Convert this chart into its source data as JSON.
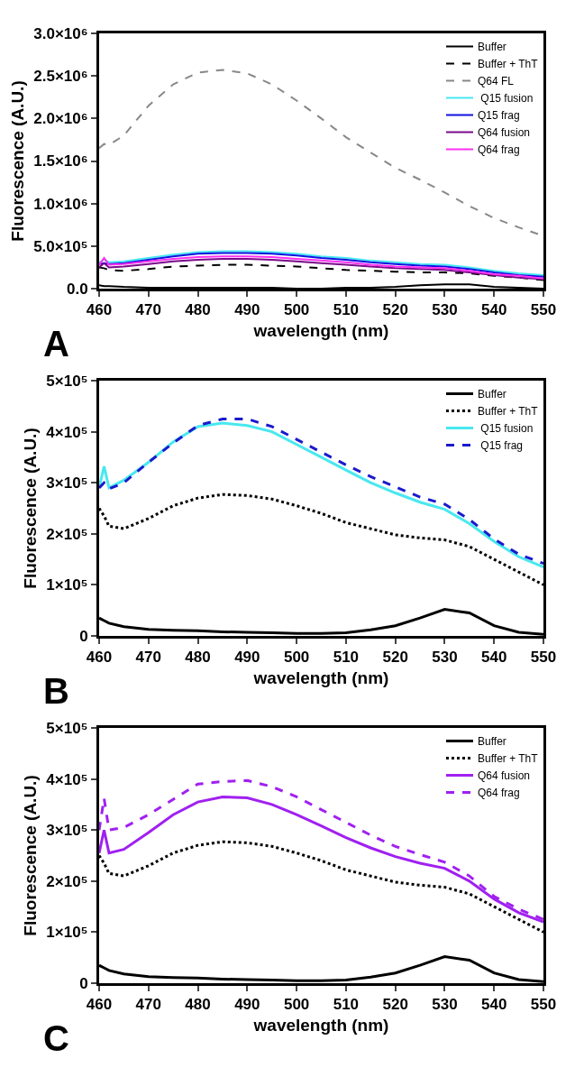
{
  "chart_data": [
    {
      "type": "line",
      "annotations": [
        "A"
      ],
      "xlabel": "wavelength (nm)",
      "ylabel": "Fluorescence (A.U.)",
      "xlim": [
        460,
        550
      ],
      "xticks": [
        460,
        470,
        480,
        490,
        500,
        510,
        520,
        530,
        540,
        550
      ],
      "ylim": [
        0,
        3000000
      ],
      "yticks": [
        {
          "value": 0,
          "label": "0.0"
        },
        {
          "value": 500000,
          "label": "5.0×10⁵"
        },
        {
          "value": 1000000,
          "label": "1.0×10⁶"
        },
        {
          "value": 1500000,
          "label": "1.5×10⁶"
        },
        {
          "value": 2000000,
          "label": "2.0×10⁶"
        },
        {
          "value": 2500000,
          "label": "2.5×10⁶"
        },
        {
          "value": 3000000,
          "label": "3.0×10⁶"
        }
      ],
      "legend": "top right",
      "x": [
        460,
        461,
        462,
        465,
        470,
        475,
        480,
        485,
        490,
        495,
        500,
        505,
        510,
        515,
        520,
        525,
        530,
        535,
        540,
        545,
        550
      ],
      "series": [
        {
          "name": "Buffer",
          "color": "#000000",
          "line_style": "solid",
          "values": [
            40000,
            30000,
            30000,
            20000,
            10000,
            10000,
            10000,
            10000,
            10000,
            10000,
            0,
            0,
            10000,
            10000,
            20000,
            40000,
            50000,
            50000,
            20000,
            10000,
            0
          ]
        },
        {
          "name": "Buffer + ThT",
          "color": "#000000",
          "line_style": "dashed",
          "values": [
            250000,
            240000,
            220000,
            210000,
            230000,
            260000,
            270000,
            280000,
            280000,
            270000,
            260000,
            240000,
            220000,
            210000,
            200000,
            190000,
            190000,
            180000,
            150000,
            130000,
            100000
          ]
        },
        {
          "name": "Q64 FL",
          "color": "#888888",
          "line_style": "dashed",
          "values": [
            1650000,
            1700000,
            1690000,
            1800000,
            2150000,
            2400000,
            2540000,
            2570000,
            2530000,
            2400000,
            2210000,
            2000000,
            1780000,
            1600000,
            1420000,
            1280000,
            1130000,
            970000,
            830000,
            720000,
            620000
          ]
        },
        {
          "name": " Q15 fusion",
          "color": "#48e8f0",
          "line_style": "solid",
          "values": [
            310000,
            340000,
            310000,
            320000,
            360000,
            400000,
            430000,
            440000,
            440000,
            430000,
            410000,
            380000,
            360000,
            330000,
            310000,
            290000,
            280000,
            250000,
            210000,
            180000,
            160000
          ]
        },
        {
          "name": "Q15 frag",
          "color": "#1010e0",
          "line_style": "solid",
          "values": [
            290000,
            300000,
            290000,
            300000,
            340000,
            380000,
            410000,
            420000,
            420000,
            410000,
            390000,
            360000,
            340000,
            310000,
            290000,
            270000,
            260000,
            230000,
            190000,
            160000,
            140000
          ]
        },
        {
          "name": "Q64 fusion",
          "color": "#7a0a8a",
          "line_style": "solid",
          "values": [
            250000,
            300000,
            250000,
            260000,
            290000,
            320000,
            340000,
            350000,
            350000,
            340000,
            320000,
            300000,
            280000,
            260000,
            240000,
            230000,
            220000,
            190000,
            160000,
            130000,
            110000
          ]
        },
        {
          "name": "Q64 frag",
          "color": "#ff30f0",
          "line_style": "solid",
          "values": [
            280000,
            360000,
            280000,
            290000,
            320000,
            350000,
            370000,
            380000,
            380000,
            370000,
            350000,
            330000,
            310000,
            280000,
            260000,
            250000,
            240000,
            210000,
            170000,
            150000,
            120000
          ]
        }
      ]
    },
    {
      "type": "line",
      "annotations": [
        "B"
      ],
      "xlabel": "wavelength (nm)",
      "ylabel": "Fluorescence (A.U.)",
      "xlim": [
        460,
        550
      ],
      "xticks": [
        460,
        470,
        480,
        490,
        500,
        510,
        520,
        530,
        540,
        550
      ],
      "ylim": [
        0,
        500000
      ],
      "yticks": [
        0,
        {
          "value": 100000,
          "label": "1×10⁵"
        },
        {
          "value": 200000,
          "label": "2×10⁵"
        },
        {
          "value": 300000,
          "label": "3×10⁵"
        },
        {
          "value": 400000,
          "label": "4×10⁵"
        },
        {
          "value": 500000,
          "label": "5×10⁵"
        }
      ],
      "legend": "top right",
      "x": [
        460,
        461,
        462,
        465,
        470,
        475,
        480,
        485,
        490,
        495,
        500,
        505,
        510,
        515,
        520,
        525,
        530,
        535,
        540,
        545,
        550
      ],
      "series": [
        {
          "name": "Buffer",
          "color": "#000000",
          "line_style": "solid",
          "values": [
            35000,
            30000,
            25000,
            18000,
            13000,
            11000,
            10000,
            8000,
            7000,
            6000,
            5000,
            5000,
            6000,
            12000,
            20000,
            35000,
            52000,
            45000,
            20000,
            7000,
            3000
          ]
        },
        {
          "name": "Buffer + ThT",
          "color": "#000000",
          "line_style": "dotted",
          "values": [
            250000,
            235000,
            215000,
            210000,
            230000,
            255000,
            270000,
            277000,
            275000,
            268000,
            255000,
            240000,
            222000,
            210000,
            198000,
            192000,
            188000,
            175000,
            150000,
            125000,
            100000
          ]
        },
        {
          "name": " Q15 fusion",
          "color": "#48e8f0",
          "line_style": "solid",
          "values": [
            290000,
            332000,
            290000,
            305000,
            340000,
            380000,
            410000,
            417000,
            412000,
            400000,
            375000,
            350000,
            325000,
            300000,
            280000,
            262000,
            248000,
            220000,
            185000,
            155000,
            135000
          ]
        },
        {
          "name": " Q15 frag",
          "color": "#1a1acc",
          "line_style": "dashed",
          "values": [
            290000,
            300000,
            288000,
            300000,
            340000,
            378000,
            412000,
            425000,
            425000,
            410000,
            385000,
            360000,
            335000,
            312000,
            292000,
            272000,
            258000,
            228000,
            190000,
            160000,
            142000
          ]
        }
      ]
    },
    {
      "type": "line",
      "annotations": [
        "C"
      ],
      "xlabel": "wavelength (nm)",
      "ylabel": "Fluorescence (A.U.)",
      "xlim": [
        460,
        550
      ],
      "xticks": [
        460,
        470,
        480,
        490,
        500,
        510,
        520,
        530,
        540,
        550
      ],
      "ylim": [
        0,
        500000
      ],
      "yticks": [
        0,
        {
          "value": 100000,
          "label": "1×10⁵"
        },
        {
          "value": 200000,
          "label": "2×10⁵"
        },
        {
          "value": 300000,
          "label": "3×10⁵"
        },
        {
          "value": 400000,
          "label": "4×10⁵"
        },
        {
          "value": 500000,
          "label": "5×10⁵"
        }
      ],
      "legend": "top right",
      "x": [
        460,
        461,
        462,
        465,
        470,
        475,
        480,
        485,
        490,
        495,
        500,
        505,
        510,
        515,
        520,
        525,
        530,
        535,
        540,
        545,
        550
      ],
      "series": [
        {
          "name": "Buffer",
          "color": "#000000",
          "line_style": "solid",
          "values": [
            35000,
            30000,
            25000,
            18000,
            13000,
            11000,
            10000,
            8000,
            7000,
            6000,
            5000,
            5000,
            6000,
            12000,
            20000,
            35000,
            52000,
            45000,
            20000,
            7000,
            3000
          ]
        },
        {
          "name": "Buffer + ThT",
          "color": "#000000",
          "line_style": "dotted",
          "values": [
            250000,
            235000,
            215000,
            210000,
            230000,
            255000,
            270000,
            277000,
            275000,
            268000,
            255000,
            240000,
            222000,
            210000,
            198000,
            192000,
            188000,
            175000,
            150000,
            125000,
            100000
          ]
        },
        {
          "name": "Q64 fusion",
          "color": "#a020f0",
          "line_style": "solid",
          "values": [
            255000,
            300000,
            255000,
            262000,
            295000,
            330000,
            355000,
            365000,
            363000,
            350000,
            330000,
            308000,
            285000,
            265000,
            248000,
            235000,
            225000,
            200000,
            165000,
            138000,
            120000
          ]
        },
        {
          "name": "Q64 frag",
          "color": "#a020f0",
          "line_style": "dashed",
          "values": [
            300000,
            362000,
            300000,
            305000,
            330000,
            360000,
            390000,
            395000,
            397000,
            385000,
            365000,
            340000,
            315000,
            290000,
            268000,
            252000,
            237000,
            210000,
            170000,
            145000,
            125000
          ]
        }
      ]
    }
  ]
}
